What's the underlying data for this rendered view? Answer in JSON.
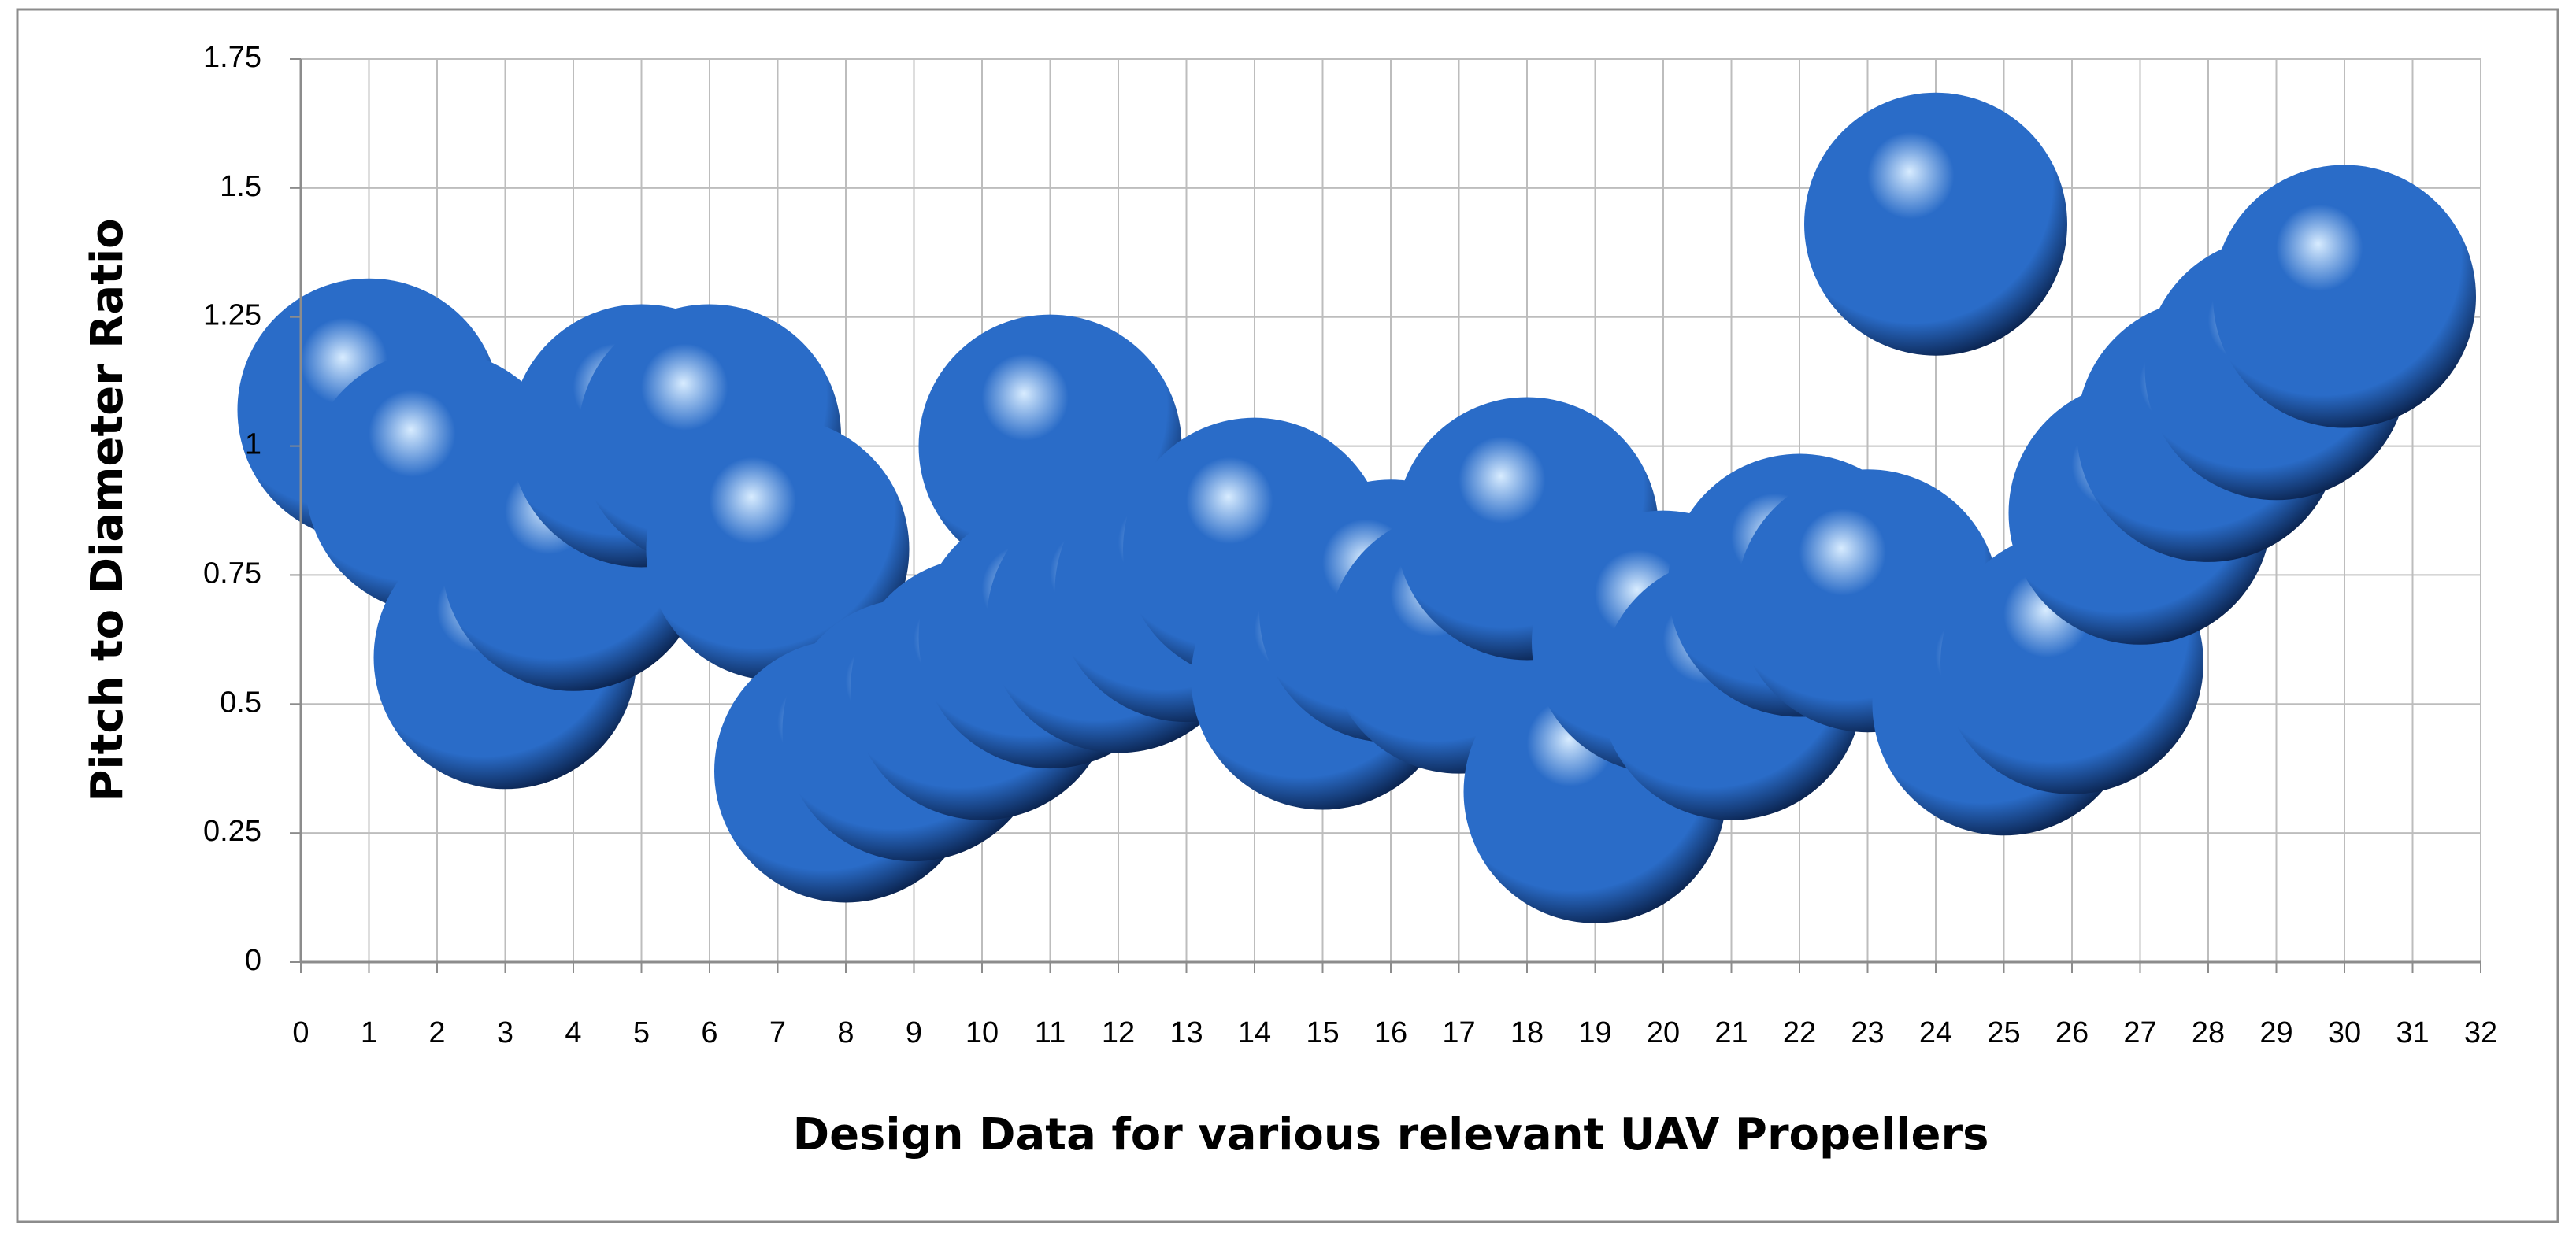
{
  "chart_data": {
    "type": "bubble",
    "x_label": "Design Data for various relevant UAV Propellers",
    "y_label": "Pitch to Diameter Ratio",
    "x": [
      1,
      2,
      3,
      4,
      5,
      6,
      7,
      8,
      9,
      10,
      11,
      11,
      12,
      13,
      14,
      15,
      16,
      17,
      18,
      19,
      20,
      21,
      22,
      23,
      24,
      25,
      26,
      27,
      28,
      29,
      30
    ],
    "values": [
      1.07,
      0.93,
      0.59,
      0.78,
      1.02,
      1.02,
      0.8,
      0.37,
      0.45,
      0.53,
      1.0,
      0.63,
      0.66,
      0.72,
      0.8,
      0.55,
      0.68,
      0.62,
      0.84,
      0.33,
      0.62,
      0.53,
      0.73,
      0.7,
      1.43,
      0.5,
      0.58,
      0.87,
      1.03,
      1.15,
      1.29
    ],
    "sizes": [
      1,
      1,
      1,
      1,
      1,
      1,
      1,
      1,
      1,
      1,
      1,
      1,
      1,
      1,
      1,
      1,
      1,
      1,
      1,
      1,
      1,
      1,
      1,
      1,
      1,
      1,
      1,
      1,
      1,
      1,
      1
    ],
    "color": "#2a6cc8",
    "xlim": [
      0,
      32
    ],
    "xticks": [
      0,
      1,
      2,
      3,
      4,
      5,
      6,
      7,
      8,
      9,
      10,
      11,
      12,
      13,
      14,
      15,
      16,
      17,
      18,
      19,
      20,
      21,
      22,
      23,
      24,
      25,
      26,
      27,
      28,
      29,
      30,
      31,
      32
    ],
    "ylim": [
      0,
      1.75
    ],
    "yticks": [
      0,
      0.25,
      0.5,
      0.75,
      1,
      1.25,
      1.5,
      1.75
    ],
    "grid": true
  }
}
